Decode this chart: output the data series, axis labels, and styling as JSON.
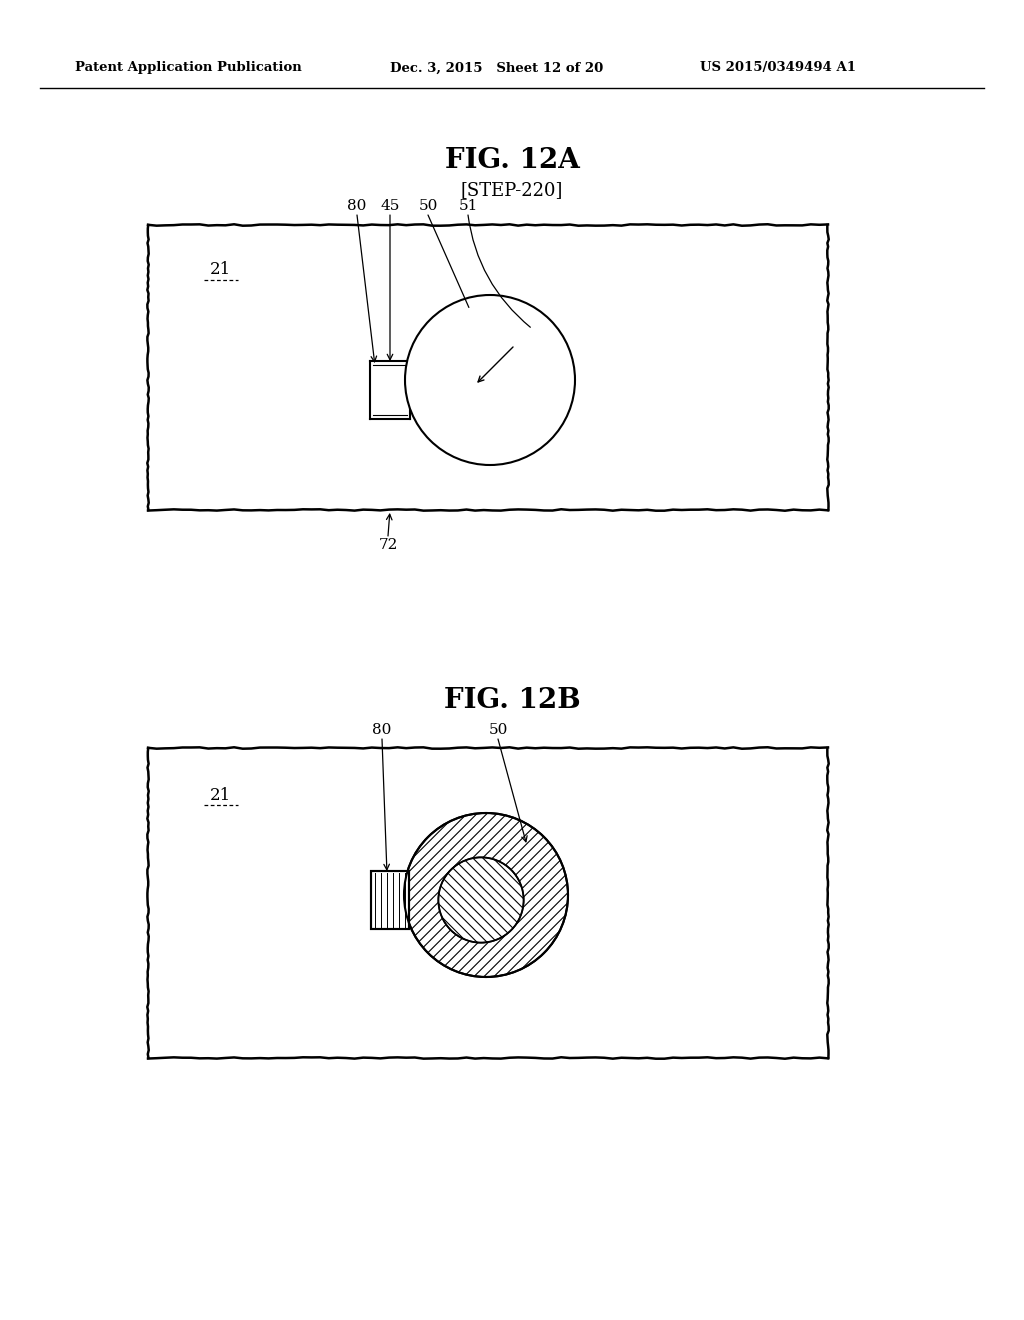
{
  "bg_color": "#ffffff",
  "header_left": "Patent Application Publication",
  "header_mid": "Dec. 3, 2015   Sheet 12 of 20",
  "header_right": "US 2015/0349494 A1",
  "fig12a_title": "FIG. 12A",
  "fig12a_subtitle": "[STEP-220]",
  "fig12b_title": "FIG. 12B",
  "label_21a": "21",
  "label_21b": "21",
  "label_80a": "80",
  "label_45": "45",
  "label_50a": "50",
  "label_51": "51",
  "label_72": "72",
  "label_80b": "80",
  "label_50b": "50"
}
